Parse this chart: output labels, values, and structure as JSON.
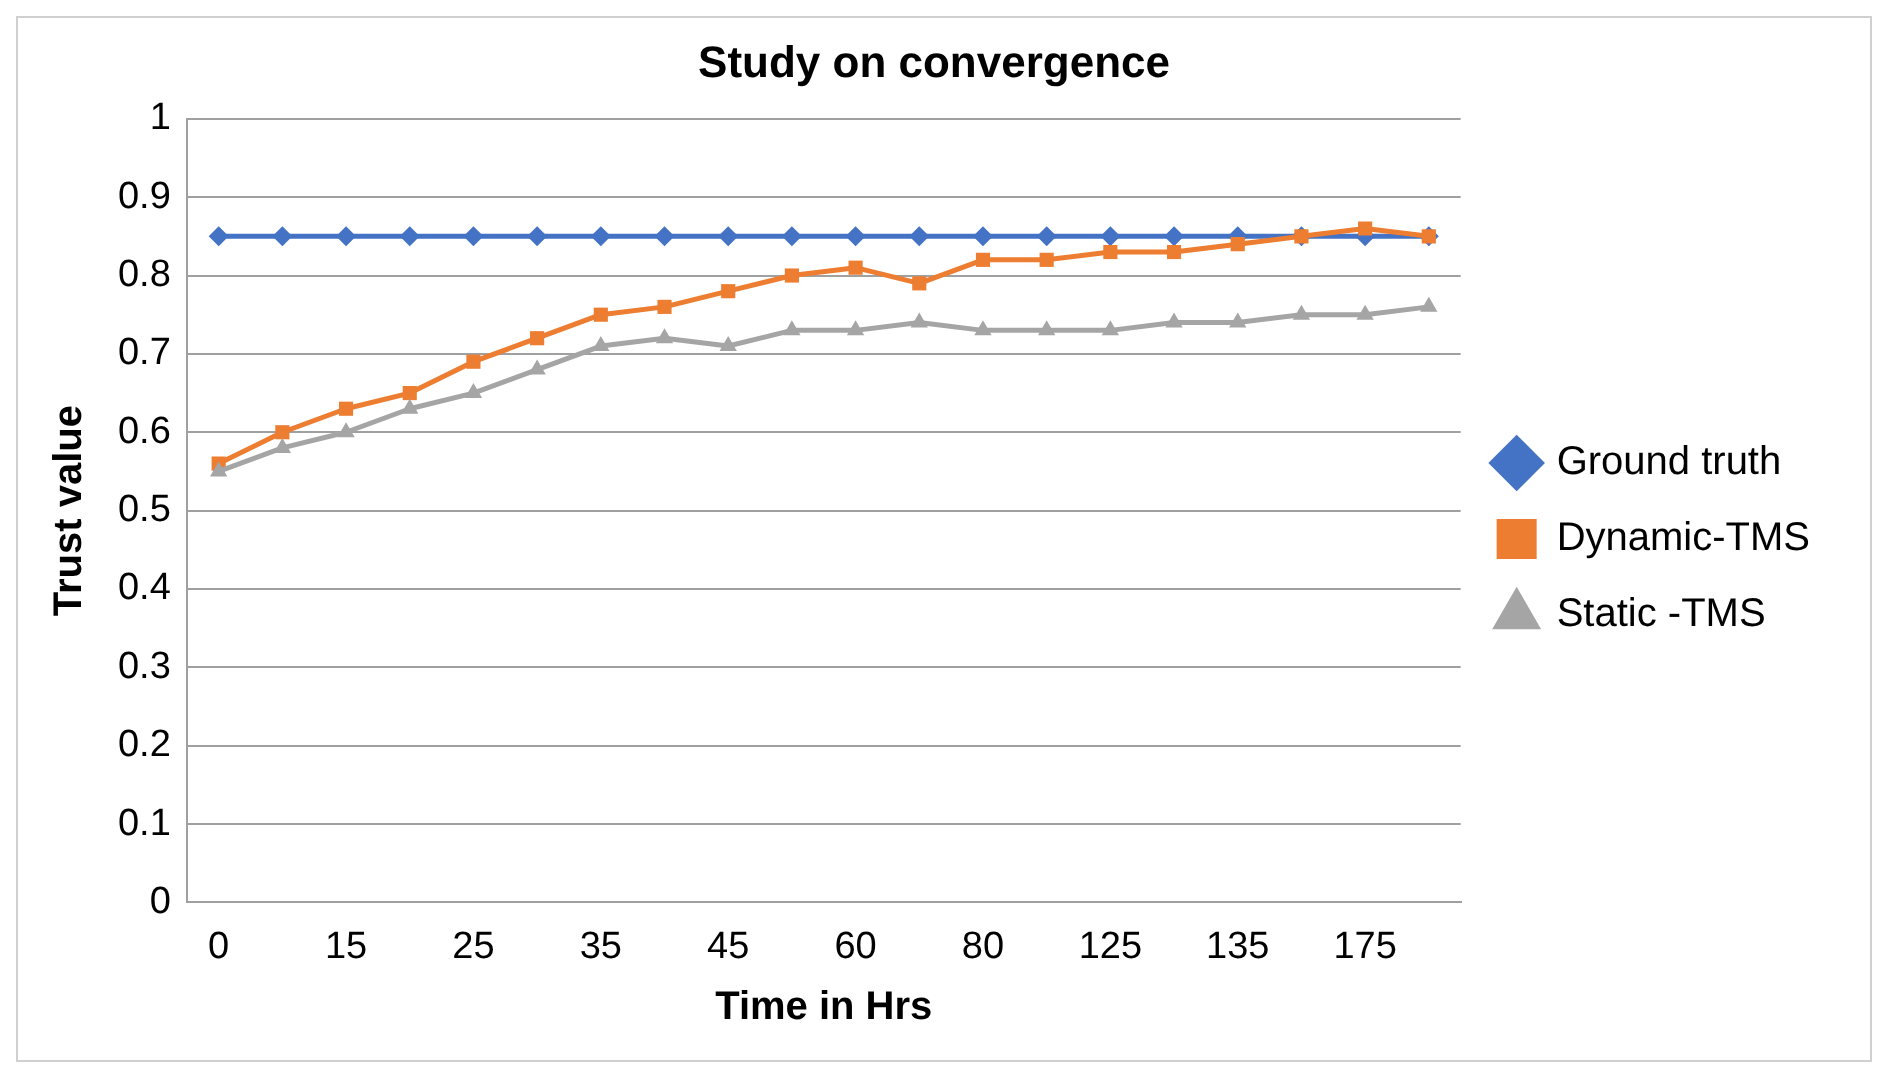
{
  "chart_data": {
    "type": "line",
    "title": "Study on convergence",
    "xlabel": "Time in Hrs",
    "ylabel": "Trust value",
    "categories": [
      "0",
      null,
      "15",
      null,
      "25",
      null,
      "35",
      null,
      "45",
      null,
      "60",
      null,
      "80",
      null,
      "125",
      null,
      "135",
      null,
      "175",
      null
    ],
    "series": [
      {
        "name": "Ground truth",
        "color": "#4472c4",
        "marker": "diamond",
        "values": [
          0.85,
          0.85,
          0.85,
          0.85,
          0.85,
          0.85,
          0.85,
          0.85,
          0.85,
          0.85,
          0.85,
          0.85,
          0.85,
          0.85,
          0.85,
          0.85,
          0.85,
          0.85,
          0.85,
          0.85
        ]
      },
      {
        "name": "Dynamic-TMS",
        "color": "#ed7d31",
        "marker": "square",
        "values": [
          0.56,
          0.6,
          0.63,
          0.65,
          0.69,
          0.72,
          0.75,
          0.76,
          0.78,
          0.8,
          0.81,
          0.79,
          0.82,
          0.82,
          0.83,
          0.83,
          0.84,
          0.85,
          0.86,
          0.85
        ]
      },
      {
        "name": "Static -TMS",
        "color": "#a5a5a5",
        "marker": "triangle",
        "values": [
          0.55,
          0.58,
          0.6,
          0.63,
          0.65,
          0.68,
          0.71,
          0.72,
          0.71,
          0.73,
          0.73,
          0.74,
          0.73,
          0.73,
          0.73,
          0.74,
          0.74,
          0.75,
          0.75,
          0.76
        ]
      }
    ],
    "ylim": [
      0,
      1
    ],
    "yticks": [
      0,
      0.1,
      0.2,
      0.3,
      0.4,
      0.5,
      0.6,
      0.7,
      0.8,
      0.9,
      1
    ],
    "grid": "y",
    "legend": "right",
    "line_style": "solid"
  }
}
